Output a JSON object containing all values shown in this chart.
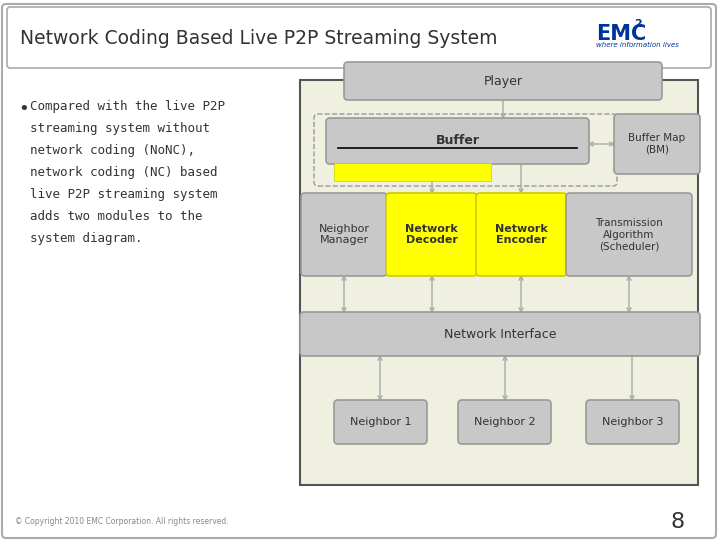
{
  "title": "Network Coding Based Live P2P Streaming System",
  "slide_bg": "#FFFFFF",
  "bullet_text_lines": [
    "Compared with the live P2P",
    "streaming system without",
    "network coding (NoNC),",
    "network coding (NC) based",
    "live P2P streaming system",
    "adds two modules to the",
    "system diagram."
  ],
  "copyright": "© Copyright 2010 EMC Corporation. All rights reserved.",
  "page_num": "8",
  "colors": {
    "gray_box": "#C8C8C8",
    "gray_edge": "#999999",
    "yellow_box": "#FFFF00",
    "yellow_edge": "#CCCC00",
    "outer_bg": "#F0F0E0",
    "outer_edge": "#555555",
    "arrow": "#AAAAAA",
    "title_color": "#333333",
    "emc_color": "#003399",
    "text_dark": "#333333",
    "header_border": "#AAAAAA"
  }
}
